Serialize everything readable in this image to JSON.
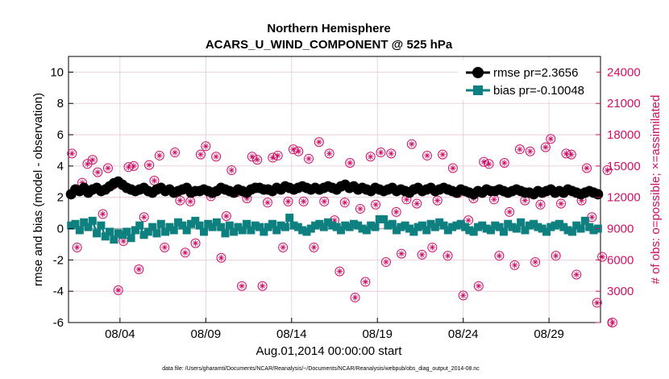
{
  "chart_data": {
    "type": "line",
    "title": "Northern Hemisphere",
    "subtitle": "ACARS_U_WIND_COMPONENT @ 525 hPa",
    "xlabel": "Aug.01,2014 00:00:00 start",
    "ylabel": "rmse and bias (model - observation)",
    "y2label": "# of obs: o=possible; ×=assimilated",
    "x_range_days": [
      0,
      31
    ],
    "ylim": [
      -6,
      11
    ],
    "y2lim": [
      0,
      25500
    ],
    "x_ticks": [
      {
        "day": 3,
        "label": "08/04"
      },
      {
        "day": 8,
        "label": "08/09"
      },
      {
        "day": 13,
        "label": "08/14"
      },
      {
        "day": 18,
        "label": "08/19"
      },
      {
        "day": 23,
        "label": "08/24"
      },
      {
        "day": 28,
        "label": "08/29"
      }
    ],
    "y_ticks": [
      -6,
      -4,
      -2,
      0,
      2,
      4,
      6,
      8,
      10
    ],
    "y2_ticks": [
      0,
      3000,
      6000,
      9000,
      12000,
      15000,
      18000,
      21000,
      24000
    ],
    "grid": true,
    "legend_position": "top-right",
    "series": [
      {
        "name": "rmse pr=2.3656",
        "color": "#000000",
        "marker": "circle",
        "values": [
          2.2,
          2.5,
          2.4,
          2.6,
          2.3,
          2.5,
          2.6,
          2.4,
          2.5,
          2.7,
          2.9,
          3.0,
          2.8,
          2.6,
          2.5,
          2.4,
          2.5,
          2.6,
          2.4,
          2.3,
          2.5,
          2.6,
          2.4,
          2.5,
          2.3,
          2.4,
          2.5,
          2.6,
          2.3,
          2.4,
          2.4,
          2.5,
          2.4,
          2.3,
          2.4,
          2.6,
          2.5,
          2.4,
          2.3,
          2.5,
          2.4,
          2.3,
          2.5,
          2.6,
          2.6,
          2.5,
          2.5,
          2.4,
          2.6,
          2.5,
          2.7,
          2.6,
          2.5,
          2.6,
          2.7,
          2.6,
          2.5,
          2.6,
          2.5,
          2.6,
          2.7,
          2.6,
          2.5,
          2.7,
          2.8,
          2.6,
          2.7,
          2.5,
          2.6,
          2.5,
          2.4,
          2.6,
          2.5,
          2.4,
          2.5,
          2.6,
          2.4,
          2.5,
          2.4,
          2.3,
          2.5,
          2.6,
          2.4,
          2.5,
          2.6,
          2.4,
          2.5,
          2.6,
          2.5,
          2.4,
          2.3,
          2.5,
          2.4,
          2.3,
          2.2,
          2.4,
          2.3,
          2.5,
          2.4,
          2.4,
          2.5,
          2.4,
          2.3,
          2.4,
          2.5,
          2.4,
          2.3,
          2.3,
          2.2,
          2.4,
          2.3,
          2.4,
          2.5,
          2.3,
          2.4,
          2.3,
          2.5,
          2.4,
          2.3,
          2.2,
          2.3,
          2.4,
          2.3,
          2.2
        ]
      },
      {
        "name": "bias pr=-0.10048",
        "color": "#0e8080",
        "marker": "square",
        "values": [
          0.2,
          0.3,
          -0.1,
          0.4,
          0.1,
          0.5,
          -0.3,
          0.2,
          -0.5,
          -0.2,
          -0.7,
          -0.3,
          -0.4,
          -0.2,
          -0.6,
          -0.1,
          0.2,
          -0.4,
          -0.2,
          0.1,
          -0.3,
          0.3,
          -0.2,
          0.1,
          -0.1,
          0.4,
          0.2,
          -0.1,
          0.3,
          0.5,
          0.2,
          -0.2,
          0.3,
          0.1,
          0.4,
          0.1,
          -0.3,
          0.2,
          -0.2,
          0.1,
          -0.1,
          0.3,
          -0.1,
          0.2,
          0.1,
          -0.2,
          0.1,
          0.3,
          -0.1,
          0.2,
          0.1,
          0.7,
          0.2,
          0.1,
          -0.1,
          -0.2,
          0.0,
          0.2,
          0.3,
          0.1,
          0.4,
          0.2,
          0.1,
          -0.1,
          0.2,
          0.1,
          0.3,
          0.2,
          0.0,
          -0.1,
          0.2,
          0.1,
          0.6,
          0.6,
          0.2,
          0.3,
          -0.1,
          0.1,
          0.2,
          0.0,
          -0.2,
          0.1,
          0.2,
          -0.1,
          0.3,
          0.1,
          0.4,
          0.2,
          -0.1,
          0.1,
          0.2,
          0.3,
          0.1,
          -0.1,
          -0.2,
          0.1,
          0.2,
          0.0,
          -0.1,
          0.2,
          0.1,
          -0.2,
          0.3,
          0.1,
          0.0,
          0.4,
          -0.1,
          0.2,
          0.3,
          0.1,
          0.0,
          -0.2,
          0.1,
          0.2,
          0.3,
          0.1,
          -0.1,
          -0.2,
          0.2,
          0.0,
          0.5,
          0.1,
          -0.1,
          0.0
        ]
      },
      {
        "name": "# of obs",
        "color": "#cc1166",
        "marker": "circle-star",
        "axis": "right",
        "points": [
          [
            0.2,
            16200
          ],
          [
            0.5,
            7200
          ],
          [
            0.8,
            13400
          ],
          [
            1.1,
            15200
          ],
          [
            1.4,
            15600
          ],
          [
            1.7,
            14400
          ],
          [
            2.0,
            10400
          ],
          [
            2.3,
            14800
          ],
          [
            2.6,
            13200
          ],
          [
            2.9,
            3100
          ],
          [
            3.2,
            7800
          ],
          [
            3.5,
            14900
          ],
          [
            3.8,
            15000
          ],
          [
            4.1,
            5100
          ],
          [
            4.4,
            10100
          ],
          [
            4.7,
            15100
          ],
          [
            5.0,
            13600
          ],
          [
            5.3,
            16000
          ],
          [
            5.6,
            7200
          ],
          [
            5.9,
            12700
          ],
          [
            6.2,
            16300
          ],
          [
            6.5,
            11700
          ],
          [
            6.8,
            6700
          ],
          [
            7.1,
            11600
          ],
          [
            7.4,
            7600
          ],
          [
            7.7,
            16100
          ],
          [
            8.0,
            16900
          ],
          [
            8.3,
            12100
          ],
          [
            8.6,
            15900
          ],
          [
            8.9,
            6200
          ],
          [
            9.2,
            10200
          ],
          [
            9.5,
            14600
          ],
          [
            9.8,
            12500
          ],
          [
            10.1,
            3500
          ],
          [
            10.4,
            11900
          ],
          [
            10.7,
            15900
          ],
          [
            11.0,
            15600
          ],
          [
            11.3,
            3500
          ],
          [
            11.6,
            11500
          ],
          [
            11.9,
            15800
          ],
          [
            12.2,
            16000
          ],
          [
            12.5,
            7200
          ],
          [
            12.8,
            11600
          ],
          [
            13.1,
            16600
          ],
          [
            13.4,
            16400
          ],
          [
            13.7,
            11600
          ],
          [
            14.0,
            15700
          ],
          [
            14.3,
            7200
          ],
          [
            14.6,
            17300
          ],
          [
            14.9,
            11600
          ],
          [
            15.2,
            16200
          ],
          [
            15.5,
            9800
          ],
          [
            15.8,
            4900
          ],
          [
            16.1,
            11500
          ],
          [
            16.4,
            15300
          ],
          [
            16.7,
            2400
          ],
          [
            17.0,
            10900
          ],
          [
            17.3,
            3900
          ],
          [
            17.6,
            15900
          ],
          [
            17.9,
            11300
          ],
          [
            18.2,
            16300
          ],
          [
            18.5,
            5800
          ],
          [
            18.8,
            16200
          ],
          [
            19.1,
            10600
          ],
          [
            19.4,
            6600
          ],
          [
            19.7,
            11800
          ],
          [
            20.0,
            17100
          ],
          [
            20.3,
            11400
          ],
          [
            20.6,
            6500
          ],
          [
            20.9,
            16000
          ],
          [
            21.2,
            7200
          ],
          [
            21.5,
            11700
          ],
          [
            21.8,
            16100
          ],
          [
            22.1,
            6400
          ],
          [
            22.4,
            14800
          ],
          [
            22.7,
            12400
          ],
          [
            23.0,
            2600
          ],
          [
            23.3,
            9800
          ],
          [
            23.6,
            11900
          ],
          [
            23.9,
            3500
          ],
          [
            24.2,
            15400
          ],
          [
            24.5,
            15200
          ],
          [
            24.8,
            11800
          ],
          [
            25.1,
            6400
          ],
          [
            25.4,
            15300
          ],
          [
            25.7,
            10600
          ],
          [
            26.0,
            5500
          ],
          [
            26.3,
            16600
          ],
          [
            26.6,
            11700
          ],
          [
            26.9,
            16400
          ],
          [
            27.2,
            5800
          ],
          [
            27.5,
            11300
          ],
          [
            27.8,
            16800
          ],
          [
            28.1,
            17600
          ],
          [
            28.4,
            6400
          ],
          [
            28.7,
            11400
          ],
          [
            29.0,
            16200
          ],
          [
            29.3,
            16100
          ],
          [
            29.6,
            4600
          ],
          [
            29.9,
            11700
          ],
          [
            30.2,
            14800
          ],
          [
            30.5,
            10100
          ],
          [
            30.8,
            1900
          ],
          [
            31.1,
            6300
          ],
          [
            31.4,
            14600
          ],
          [
            31.7,
            0
          ]
        ]
      }
    ],
    "start_label": "Aug.01,2014 00:00:00 start",
    "footnote": "data file: /Users/gharamti/Documents/NCAR/Reanalysis/~/Documents/NCAR/Reanalysis/webpub/obs_diag_output_2014-08.nc"
  }
}
